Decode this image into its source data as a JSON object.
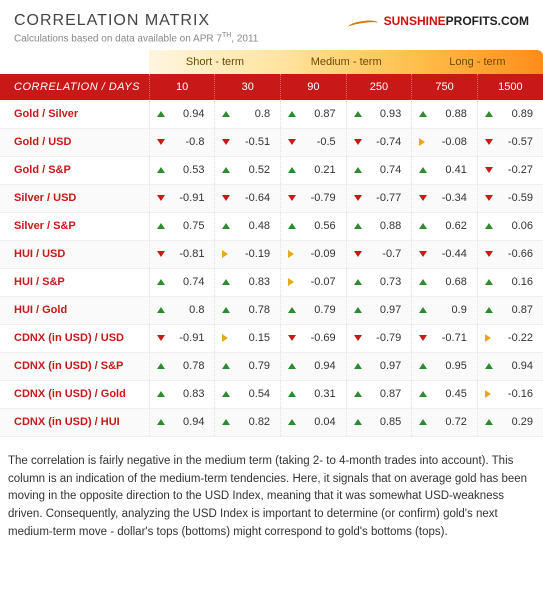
{
  "header": {
    "title": "CORRELATION MATRIX",
    "subtitle_prefix": "Calculations based on data available on ",
    "date_main": "APR 7",
    "date_ord": "TH",
    "date_year": ", 2011",
    "logo_sun": "SUNSHINE",
    "logo_rest": "PROFITS.COM"
  },
  "terms": [
    {
      "label": "Short - term",
      "class": "term-short",
      "span": 2
    },
    {
      "label": "Medium - term",
      "class": "term-medium",
      "span": 2
    },
    {
      "label": "Long - term",
      "class": "term-long",
      "span": 2
    }
  ],
  "corner": "CORRELATION / DAYS",
  "day_headers": [
    "10",
    "30",
    "90",
    "250",
    "750",
    "1500"
  ],
  "rows": [
    {
      "label": "Gold / Silver",
      "cells": [
        {
          "v": "0.94",
          "d": "up"
        },
        {
          "v": "0.8",
          "d": "up"
        },
        {
          "v": "0.87",
          "d": "up"
        },
        {
          "v": "0.93",
          "d": "up"
        },
        {
          "v": "0.88",
          "d": "up"
        },
        {
          "v": "0.89",
          "d": "up"
        }
      ]
    },
    {
      "label": "Gold / USD",
      "cells": [
        {
          "v": "-0.8",
          "d": "down"
        },
        {
          "v": "-0.51",
          "d": "down"
        },
        {
          "v": "-0.5",
          "d": "down"
        },
        {
          "v": "-0.74",
          "d": "down"
        },
        {
          "v": "-0.08",
          "d": "flat"
        },
        {
          "v": "-0.57",
          "d": "down"
        }
      ]
    },
    {
      "label": "Gold / S&P",
      "cells": [
        {
          "v": "0.53",
          "d": "up"
        },
        {
          "v": "0.52",
          "d": "up"
        },
        {
          "v": "0.21",
          "d": "up"
        },
        {
          "v": "0.74",
          "d": "up"
        },
        {
          "v": "0.41",
          "d": "up"
        },
        {
          "v": "-0.27",
          "d": "down"
        }
      ]
    },
    {
      "label": "Silver / USD",
      "cells": [
        {
          "v": "-0.91",
          "d": "down"
        },
        {
          "v": "-0.64",
          "d": "down"
        },
        {
          "v": "-0.79",
          "d": "down"
        },
        {
          "v": "-0.77",
          "d": "down"
        },
        {
          "v": "-0.34",
          "d": "down"
        },
        {
          "v": "-0.59",
          "d": "down"
        }
      ]
    },
    {
      "label": "Silver / S&P",
      "cells": [
        {
          "v": "0.75",
          "d": "up"
        },
        {
          "v": "0.48",
          "d": "up"
        },
        {
          "v": "0.56",
          "d": "up"
        },
        {
          "v": "0.88",
          "d": "up"
        },
        {
          "v": "0.62",
          "d": "up"
        },
        {
          "v": "0.06",
          "d": "up"
        }
      ]
    },
    {
      "label": "HUI / USD",
      "cells": [
        {
          "v": "-0.81",
          "d": "down"
        },
        {
          "v": "-0.19",
          "d": "flat"
        },
        {
          "v": "-0.09",
          "d": "flat"
        },
        {
          "v": "-0.7",
          "d": "down"
        },
        {
          "v": "-0.44",
          "d": "down"
        },
        {
          "v": "-0.66",
          "d": "down"
        }
      ]
    },
    {
      "label": "HUI / S&P",
      "cells": [
        {
          "v": "0.74",
          "d": "up"
        },
        {
          "v": "0.83",
          "d": "up"
        },
        {
          "v": "-0.07",
          "d": "flat"
        },
        {
          "v": "0.73",
          "d": "up"
        },
        {
          "v": "0.68",
          "d": "up"
        },
        {
          "v": "0.16",
          "d": "up"
        }
      ]
    },
    {
      "label": "HUI / Gold",
      "cells": [
        {
          "v": "0.8",
          "d": "up"
        },
        {
          "v": "0.78",
          "d": "up"
        },
        {
          "v": "0.79",
          "d": "up"
        },
        {
          "v": "0.97",
          "d": "up"
        },
        {
          "v": "0.9",
          "d": "up"
        },
        {
          "v": "0.87",
          "d": "up"
        }
      ]
    },
    {
      "label": "CDNX (in USD) / USD",
      "cells": [
        {
          "v": "-0.91",
          "d": "down"
        },
        {
          "v": "0.15",
          "d": "flat"
        },
        {
          "v": "-0.69",
          "d": "down"
        },
        {
          "v": "-0.79",
          "d": "down"
        },
        {
          "v": "-0.71",
          "d": "down"
        },
        {
          "v": "-0.22",
          "d": "flat"
        }
      ]
    },
    {
      "label": "CDNX (in USD) / S&P",
      "cells": [
        {
          "v": "0.78",
          "d": "up"
        },
        {
          "v": "0.79",
          "d": "up"
        },
        {
          "v": "0.94",
          "d": "up"
        },
        {
          "v": "0.97",
          "d": "up"
        },
        {
          "v": "0.95",
          "d": "up"
        },
        {
          "v": "0.94",
          "d": "up"
        }
      ]
    },
    {
      "label": "CDNX (in USD) / Gold",
      "cells": [
        {
          "v": "0.83",
          "d": "up"
        },
        {
          "v": "0.54",
          "d": "up"
        },
        {
          "v": "0.31",
          "d": "up"
        },
        {
          "v": "0.87",
          "d": "up"
        },
        {
          "v": "0.45",
          "d": "up"
        },
        {
          "v": "-0.16",
          "d": "flat"
        }
      ]
    },
    {
      "label": "CDNX (in USD) / HUI",
      "cells": [
        {
          "v": "0.94",
          "d": "up"
        },
        {
          "v": "0.82",
          "d": "up"
        },
        {
          "v": "0.04",
          "d": "up"
        },
        {
          "v": "0.85",
          "d": "up"
        },
        {
          "v": "0.72",
          "d": "up"
        },
        {
          "v": "0.29",
          "d": "up"
        }
      ]
    }
  ],
  "caption": "The correlation is fairly negative in the medium term (taking 2- to 4-month trades into account). This column is an indication of the medium-term tendencies. Here, it signals that on average gold has been moving in the opposite direction to the USD Index, meaning that it was somewhat USD-weakness driven. Consequently, analyzing the USD Index is important to determine (or confirm) gold's next medium-term move - dollar's tops (bottoms) might correspond to gold's bottoms (tops)."
}
